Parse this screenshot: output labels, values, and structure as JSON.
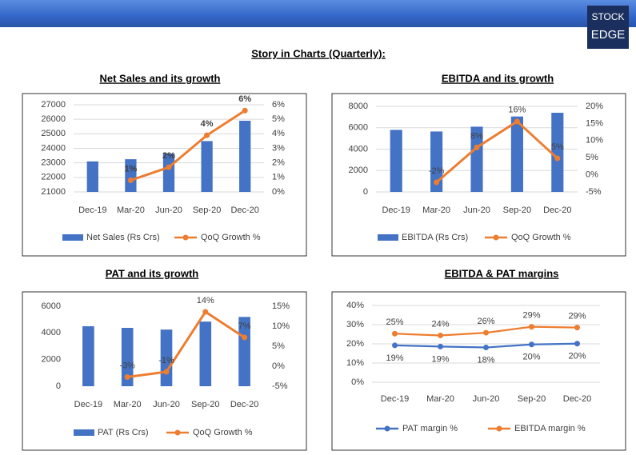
{
  "heading": "Story in Charts (Quarterly):",
  "logo": [
    "STOCK",
    "EDGE"
  ],
  "chart_data": [
    {
      "type": "bar_line",
      "title": "Net Sales and its growth",
      "categories": [
        "Dec-19",
        "Mar-20",
        "Jun-20",
        "Sep-20",
        "Dec-20"
      ],
      "series": [
        {
          "name": "Net Sales (Rs Crs)",
          "type": "bar",
          "color": "#4472c4",
          "values": [
            23100,
            23250,
            23650,
            24500,
            25900
          ]
        },
        {
          "name": "QoQ Growth %",
          "type": "line",
          "axis": "y2",
          "color": "#ed7d31",
          "values": [
            null,
            0.8,
            1.7,
            3.9,
            5.6
          ],
          "value_labels": [
            null,
            "1%",
            "2%",
            "4%",
            "6%"
          ]
        }
      ],
      "ylim": [
        21000,
        27000
      ],
      "yticks": [
        21000,
        22000,
        23000,
        24000,
        25000,
        26000,
        27000
      ],
      "y2lim": [
        0,
        6
      ],
      "y2ticks": [
        {
          "value": 0,
          "label": "0%"
        },
        {
          "value": 1,
          "label": "1%"
        },
        {
          "value": 2,
          "label": "2%"
        },
        {
          "value": 3,
          "label": "3%"
        },
        {
          "value": 4,
          "label": "4%"
        },
        {
          "value": 5,
          "label": "5%"
        },
        {
          "value": 6,
          "label": "6%"
        }
      ],
      "grid": true,
      "legend": "bottom"
    },
    {
      "type": "bar_line",
      "title": "EBITDA and its growth",
      "categories": [
        "Dec-19",
        "Mar-20",
        "Jun-20",
        "Sep-20",
        "Dec-20"
      ],
      "series": [
        {
          "name": "EBITDA (Rs Crs)",
          "type": "bar",
          "color": "#4472c4",
          "values": [
            5800,
            5650,
            6100,
            7050,
            7400
          ]
        },
        {
          "name": "QoQ Growth %",
          "type": "line",
          "axis": "y2",
          "color": "#ed7d31",
          "values": [
            null,
            -2.2,
            8.0,
            15.6,
            4.8
          ],
          "value_labels": [
            null,
            "-2%",
            "8%",
            "16%",
            "5%"
          ]
        }
      ],
      "ylim": [
        0,
        8000
      ],
      "yticks": [
        0,
        2000,
        4000,
        6000,
        8000
      ],
      "y2lim": [
        -5,
        20
      ],
      "y2ticks": [
        {
          "value": -5,
          "label": "-5%"
        },
        {
          "value": 0,
          "label": "0%"
        },
        {
          "value": 5,
          "label": "5%"
        },
        {
          "value": 10,
          "label": "10%"
        },
        {
          "value": 15,
          "label": "15%"
        },
        {
          "value": 20,
          "label": "20%"
        }
      ],
      "grid": true,
      "legend": "bottom"
    },
    {
      "type": "bar_line",
      "title": "PAT and its growth",
      "categories": [
        "Dec-19",
        "Mar-20",
        "Jun-20",
        "Sep-20",
        "Dec-20"
      ],
      "series": [
        {
          "name": "PAT (Rs Crs)",
          "type": "bar",
          "color": "#4472c4",
          "values": [
            4500,
            4380,
            4250,
            4850,
            5200
          ]
        },
        {
          "name": "QoQ Growth %",
          "type": "line",
          "axis": "y2",
          "color": "#ed7d31",
          "values": [
            null,
            -2.7,
            -1.4,
            13.6,
            7.2
          ],
          "value_labels": [
            null,
            "-3%",
            "-1%",
            "14%",
            "7%"
          ]
        }
      ],
      "ylim": [
        0,
        6000
      ],
      "yticks": [
        0,
        2000,
        4000,
        6000
      ],
      "y2lim": [
        -5,
        15
      ],
      "y2ticks": [
        {
          "value": -5,
          "label": "-5%"
        },
        {
          "value": 0,
          "label": "0%"
        },
        {
          "value": 5,
          "label": "5%"
        },
        {
          "value": 10,
          "label": "10%"
        },
        {
          "value": 15,
          "label": "15%"
        }
      ],
      "grid": false,
      "legend": "bottom"
    },
    {
      "type": "line",
      "title": "EBITDA & PAT margins",
      "categories": [
        "Dec-19",
        "Mar-20",
        "Jun-20",
        "Sep-20",
        "Dec-20"
      ],
      "series": [
        {
          "name": "PAT margin %",
          "type": "line",
          "color": "#4472c4",
          "values": [
            19.2,
            18.6,
            18.1,
            19.7,
            20.1
          ],
          "value_labels": [
            "19%",
            "19%",
            "18%",
            "20%",
            "20%"
          ]
        },
        {
          "name": "EBITDA margin %",
          "type": "line",
          "color": "#ed7d31",
          "values": [
            25.3,
            24.4,
            25.8,
            28.9,
            28.5
          ],
          "value_labels": [
            "25%",
            "24%",
            "26%",
            "29%",
            "29%"
          ]
        }
      ],
      "ylim": [
        0,
        40
      ],
      "yticks": [
        {
          "value": 0,
          "label": "0%"
        },
        {
          "value": 10,
          "label": "10%"
        },
        {
          "value": 20,
          "label": "20%"
        },
        {
          "value": 30,
          "label": "30%"
        },
        {
          "value": 40,
          "label": "40%"
        }
      ],
      "grid": true,
      "legend": "bottom"
    }
  ]
}
